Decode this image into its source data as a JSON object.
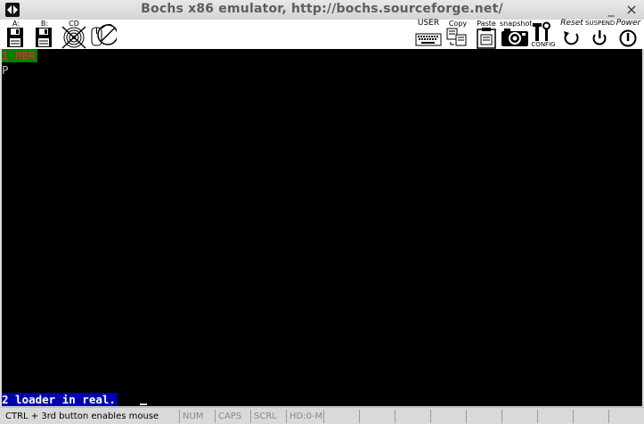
{
  "window": {
    "title": "Bochs x86 emulator, http://bochs.sourceforge.net/",
    "minimize_glyph": "_",
    "close_glyph": "×"
  },
  "toolbar": {
    "floppy_a": {
      "label": "A:",
      "icon": "floppy-icon"
    },
    "floppy_b": {
      "label": "B:",
      "icon": "floppy-icon"
    },
    "cdrom": {
      "label": "CD",
      "icon": "cdrom-icon"
    },
    "mouse": {
      "label": "",
      "icon": "mouse-disabled-icon"
    },
    "user": {
      "label": "USER",
      "icon": "keyboard-icon"
    },
    "copy": {
      "label": "Copy",
      "icon": "copy-icon"
    },
    "paste": {
      "label": "Paste",
      "icon": "paste-icon"
    },
    "snapshot": {
      "label": "snapshot",
      "icon": "camera-icon"
    },
    "config": {
      "label": "CONFIG",
      "icon": "config-icon"
    },
    "reset": {
      "label": "Reset",
      "icon": "reset-icon"
    },
    "suspend": {
      "label": "SUSPEND",
      "icon": "suspend-icon"
    },
    "power": {
      "label": "Power",
      "icon": "power-icon"
    }
  },
  "screen": {
    "top_line": "1 MBR",
    "second_line": "P",
    "bottom_line": "2 loader in real."
  },
  "statusbar": {
    "hint": "CTRL + 3rd button enables mouse",
    "num": "NUM",
    "caps": "CAPS",
    "scrl": "SCRL",
    "hd": "HD:0-M"
  }
}
